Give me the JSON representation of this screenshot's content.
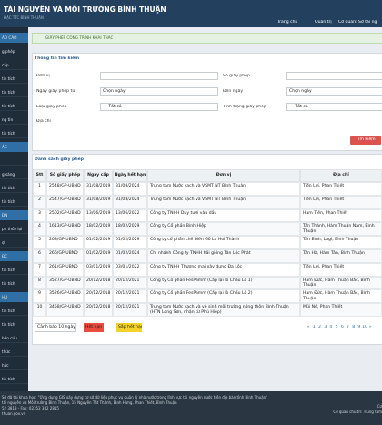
{
  "header": {
    "title": "TÀI NGUYÊN VÀ MÔI TRƯỜNG BÌNH THUẬN",
    "subtitle": "ĐẶC TTC BÌNH THUẬN",
    "nav": [
      "Trang chủ",
      "Quản trị",
      "Cơ quan: Sở tài ng"
    ]
  },
  "sidebar": [
    "ÁO CÁO",
    "g phép",
    "cấp",
    "tin tích",
    "tin tích",
    "tin tích",
    "ng tin",
    "tin tích",
    "ÁC",
    "",
    "g.sáng",
    "tin tích",
    "tin tích",
    "ĐN",
    "ph thủy lợi",
    "ợi",
    "ĐC",
    "tin tích",
    "tin tích",
    "HU",
    "tin tích",
    "tin tích",
    "hên cứu",
    "thức",
    "hức",
    "tin tích"
  ],
  "breadcrumb": "GIẤY PHÉP CÔNG TRÌNH KHAI THÁC",
  "search": {
    "title": "Thông tin tìm kiếm",
    "fields": [
      {
        "label": "Đơn vị",
        "value": ""
      },
      {
        "label": "Số giấy phép",
        "value": ""
      },
      {
        "label": "Ngày giấy phép từ",
        "value": "Chọn ngày"
      },
      {
        "label": "Đến ngày",
        "value": "Chọn ngày"
      },
      {
        "label": "Loại giấy phép",
        "value": "--- Tất cả ---"
      },
      {
        "label": "Tình trạng giấy phép",
        "value": "--- Tất cả ---"
      },
      {
        "label": "Địa chỉ",
        "value": ""
      }
    ],
    "button": "Tìm kiếm"
  },
  "list": {
    "title": "Danh sách giấy phép",
    "columns": [
      "Stt",
      "Số giấy phép",
      "Ngày cấp",
      "Ngày hết hạn",
      "Đơn vị",
      "Địa chỉ"
    ],
    "rows": [
      [
        "1",
        "2548/GP-UBND",
        "31/08/2019",
        "31/08/2024",
        "Trung tâm Nước sạch và VSMT NT Bình Thuận",
        "Tiến Lợi, Phan Thiết"
      ],
      [
        "2",
        "2547/GP-UBND",
        "31/08/2019",
        "31/08/2024",
        "Trung tâm Nước sạch và VSMT NT Bình Thuận",
        "Tiến Lợi, Phan Thiết"
      ],
      [
        "3",
        "2502/GP-UBND",
        "13/06/2019",
        "13/06/2022",
        "Công ty TNHH Duy tươi vàu dầu",
        "Hàm Tiến, Phan Thiết"
      ],
      [
        "4",
        "1613/GP-UBND",
        "18/02/2019",
        "18/02/2029",
        "Công ty Cổ phần Bình Hiệp",
        "Tân Thành, Hàm Thuận Nam, Bình Thuận"
      ],
      [
        "5",
        "268/GP-UBND",
        "01/02/2019",
        "01/02/2029",
        "Công ty cổ phần chế biến Gỗ Lá Hơi Thành",
        "Tân Bình, Lagi, Bình Thuận"
      ],
      [
        "6",
        "266/GP-UBND",
        "01/02/2019",
        "01/02/2024",
        "Chi nhánh Công ty TNHH hải giống Tân Lộc Phát",
        "Tân Hà, Hàm Tân, Bình Thuận"
      ],
      [
        "7",
        "261/GP-UBND",
        "03/01/2019",
        "03/01/2022",
        "Công ty TNHH Thương mại xây dựng Đa Lộc",
        "Tiến Lợi, Phan Thiết"
      ],
      [
        "8",
        "3527/GP-UBND",
        "20/12/2018",
        "20/12/2021",
        "Công ty Cổ phần FesPamm (Cấp lại lò Chấu Lò 1)",
        "Hàm Đức, Hàm Thuận Bắc, Bình Thuận"
      ],
      [
        "9",
        "3526/GP-UBND",
        "20/12/2018",
        "20/12/2021",
        "Công ty Cổ phần FesPamm (Cấp lại lò Chấu Lò 2)",
        "Hàm Đức, Hàm Thuận Bắc, Bình Thuận"
      ],
      [
        "10",
        "3458/GP-UBND",
        "20/12/2018",
        "20/12/2021",
        "Trung tâm Nước sạch và vệ sinh môi trường nông thôn Bình Thuận (HTN Long Sơn, nhận từ Phú Hiệp)",
        "Mũi Né, Phan Thiết"
      ]
    ]
  },
  "controls": {
    "warning": "Cảnh báo 10 ngày",
    "expired": "Hết hạn",
    "expiring": "Sắp hết hạn",
    "pages": [
      "«",
      "1",
      "2",
      "3",
      "4",
      "5",
      "6",
      "7",
      "8",
      "9",
      "10",
      "»"
    ]
  },
  "footer": {
    "lines": [
      "Sở đã tài khoa học: \"Ứng dụng GIS xây dựng cơ sở dữ liệu phục vụ quản lý nhà nước trong lĩnh vực tài nguyên nước trên địa bàn tỉnh Bình Thuận\"",
      "tài nguyên và Môi trường Bình Thuận, 15 Nguyễn Tất Thành, Bình Hưng, Phan Thiết, Bình Thuận",
      "52 3813 - Fax: 02352 382 2815",
      "thuan.gov.vn"
    ],
    "right": [
      "Cơ",
      "Cơ quan chủ trì: Trung tâm"
    ]
  }
}
